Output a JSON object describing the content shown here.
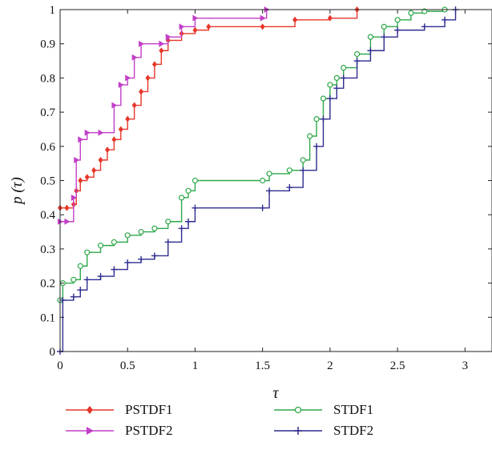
{
  "chart_data": {
    "type": "line",
    "step": true,
    "xlabel": "τ",
    "ylabel": "p (τ)",
    "xlim": [
      0,
      3.2
    ],
    "ylim": [
      0,
      1
    ],
    "x_ticks": [
      "0",
      "0.5",
      "1",
      "1.5",
      "2",
      "2.5",
      "3"
    ],
    "y_ticks": [
      "0",
      "0.1",
      "0.2",
      "0.3",
      "0.4",
      "0.5",
      "0.6",
      "0.7",
      "0.8",
      "0.9",
      "1"
    ],
    "legend_position": "bottom",
    "series": [
      {
        "name": "PSTDF1",
        "color": "#e8362a",
        "marker": "diamond",
        "points": [
          [
            0,
            0.42
          ],
          [
            0.05,
            0.42
          ],
          [
            0.1,
            0.43
          ],
          [
            0.12,
            0.47
          ],
          [
            0.15,
            0.5
          ],
          [
            0.2,
            0.51
          ],
          [
            0.25,
            0.53
          ],
          [
            0.3,
            0.56
          ],
          [
            0.35,
            0.59
          ],
          [
            0.4,
            0.62
          ],
          [
            0.45,
            0.65
          ],
          [
            0.5,
            0.68
          ],
          [
            0.55,
            0.72
          ],
          [
            0.6,
            0.76
          ],
          [
            0.65,
            0.8
          ],
          [
            0.7,
            0.84
          ],
          [
            0.75,
            0.88
          ],
          [
            0.8,
            0.91
          ],
          [
            0.9,
            0.93
          ],
          [
            1.0,
            0.94
          ],
          [
            1.1,
            0.95
          ],
          [
            1.5,
            0.95
          ],
          [
            1.74,
            0.97
          ],
          [
            2.0,
            0.975
          ],
          [
            2.2,
            1.0
          ]
        ]
      },
      {
        "name": "PSTDF2",
        "color": "#c23fc8",
        "marker": "triangle-right",
        "points": [
          [
            0,
            0.38
          ],
          [
            0.05,
            0.38
          ],
          [
            0.1,
            0.45
          ],
          [
            0.12,
            0.56
          ],
          [
            0.15,
            0.62
          ],
          [
            0.2,
            0.64
          ],
          [
            0.3,
            0.64
          ],
          [
            0.4,
            0.72
          ],
          [
            0.45,
            0.78
          ],
          [
            0.5,
            0.8
          ],
          [
            0.55,
            0.86
          ],
          [
            0.6,
            0.9
          ],
          [
            0.75,
            0.9
          ],
          [
            0.8,
            0.92
          ],
          [
            0.9,
            0.95
          ],
          [
            1.0,
            0.975
          ],
          [
            1.5,
            0.975
          ],
          [
            1.53,
            1.0
          ]
        ]
      },
      {
        "name": "STDF1",
        "color": "#2ea84a",
        "marker": "circle",
        "points": [
          [
            0,
            0.15
          ],
          [
            0.02,
            0.2
          ],
          [
            0.1,
            0.21
          ],
          [
            0.15,
            0.25
          ],
          [
            0.2,
            0.29
          ],
          [
            0.3,
            0.31
          ],
          [
            0.4,
            0.32
          ],
          [
            0.5,
            0.34
          ],
          [
            0.6,
            0.35
          ],
          [
            0.7,
            0.36
          ],
          [
            0.8,
            0.38
          ],
          [
            0.9,
            0.45
          ],
          [
            0.95,
            0.47
          ],
          [
            1.0,
            0.5
          ],
          [
            1.5,
            0.5
          ],
          [
            1.55,
            0.52
          ],
          [
            1.7,
            0.53
          ],
          [
            1.8,
            0.56
          ],
          [
            1.85,
            0.63
          ],
          [
            1.9,
            0.68
          ],
          [
            1.95,
            0.74
          ],
          [
            2.0,
            0.78
          ],
          [
            2.05,
            0.8
          ],
          [
            2.1,
            0.83
          ],
          [
            2.2,
            0.87
          ],
          [
            2.3,
            0.92
          ],
          [
            2.4,
            0.95
          ],
          [
            2.5,
            0.97
          ],
          [
            2.6,
            0.99
          ],
          [
            2.7,
            0.995
          ],
          [
            2.85,
            1.0
          ]
        ]
      },
      {
        "name": "STDF2",
        "color": "#2f2d90",
        "marker": "plus",
        "points": [
          [
            0,
            0.0
          ],
          [
            0.02,
            0.15
          ],
          [
            0.1,
            0.16
          ],
          [
            0.15,
            0.18
          ],
          [
            0.2,
            0.21
          ],
          [
            0.3,
            0.22
          ],
          [
            0.4,
            0.24
          ],
          [
            0.5,
            0.26
          ],
          [
            0.6,
            0.27
          ],
          [
            0.7,
            0.28
          ],
          [
            0.8,
            0.32
          ],
          [
            0.9,
            0.36
          ],
          [
            0.95,
            0.38
          ],
          [
            1.0,
            0.42
          ],
          [
            1.5,
            0.42
          ],
          [
            1.55,
            0.47
          ],
          [
            1.7,
            0.48
          ],
          [
            1.8,
            0.53
          ],
          [
            1.9,
            0.6
          ],
          [
            1.95,
            0.68
          ],
          [
            2.0,
            0.74
          ],
          [
            2.05,
            0.77
          ],
          [
            2.1,
            0.8
          ],
          [
            2.2,
            0.85
          ],
          [
            2.3,
            0.88
          ],
          [
            2.4,
            0.92
          ],
          [
            2.5,
            0.94
          ],
          [
            2.7,
            0.95
          ],
          [
            2.85,
            0.97
          ],
          [
            2.93,
            1.0
          ]
        ]
      }
    ]
  }
}
